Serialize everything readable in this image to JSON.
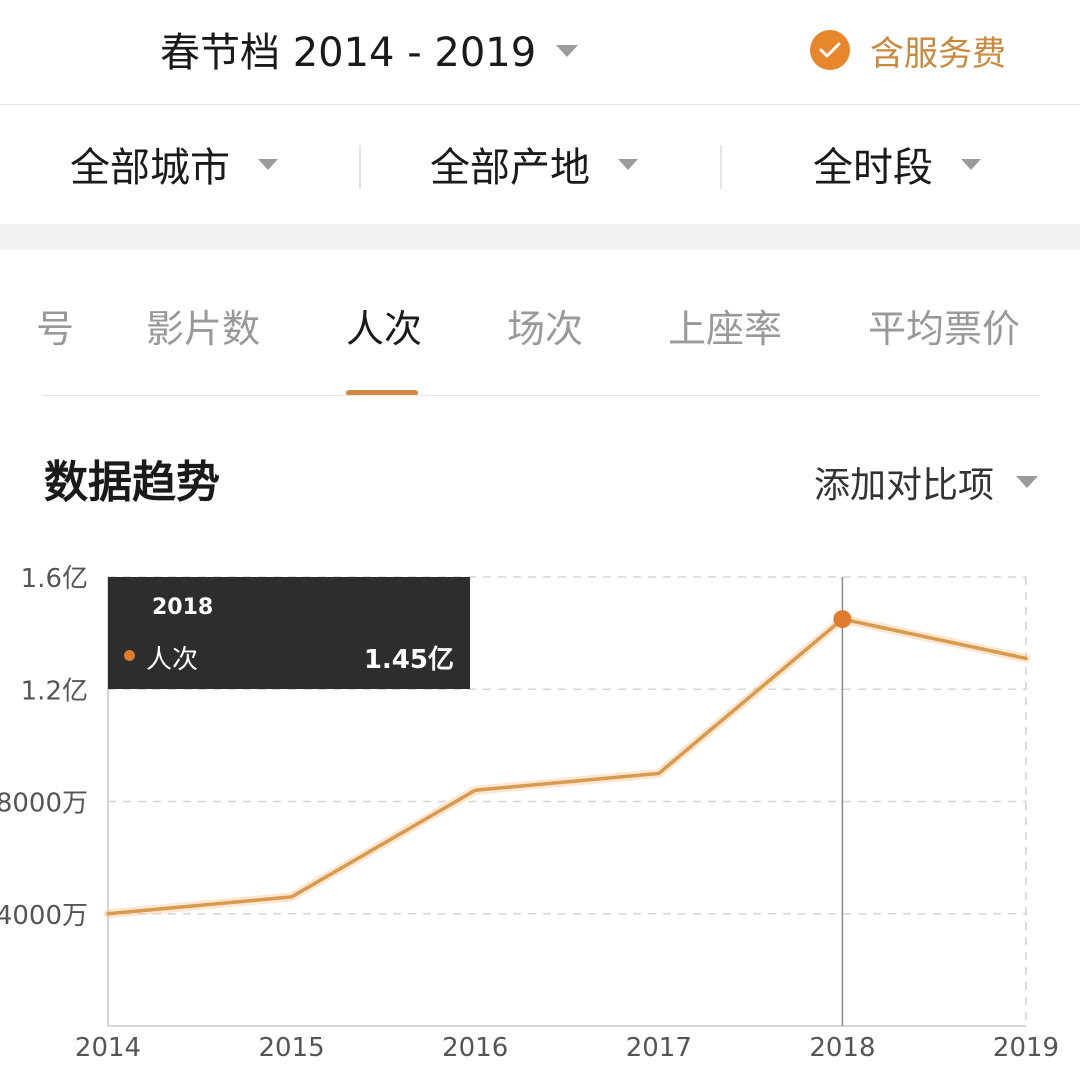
{
  "header": {
    "title": "春节档 2014 - 2019",
    "service_label": "含服务费"
  },
  "filters": [
    {
      "label": "全部城市"
    },
    {
      "label": "全部产地"
    },
    {
      "label": "全时段"
    }
  ],
  "tabs": [
    {
      "label": "号"
    },
    {
      "label": "影片数"
    },
    {
      "label": "人次",
      "active": true
    },
    {
      "label": "场次"
    },
    {
      "label": "上座率"
    },
    {
      "label": "平均票价"
    }
  ],
  "section": {
    "title": "数据趋势",
    "compare_label": "添加对比项"
  },
  "tooltip": {
    "year": "2018",
    "series_name": "人次",
    "value": "1.45亿"
  },
  "colors": {
    "accent": "#d18a45",
    "line": "#d99a4e",
    "point": "#e07c2e",
    "tooltip_bg": "#2d2d2d"
  },
  "chart_data": {
    "type": "line",
    "x": [
      "2014",
      "2015",
      "2016",
      "2017",
      "2018",
      "2019"
    ],
    "series": [
      {
        "name": "人次",
        "values": [
          40000000,
          46000000,
          84000000,
          90000000,
          145000000,
          131000000
        ]
      }
    ],
    "ylim": [
      0,
      160000000
    ],
    "yticks": [
      {
        "value": 160000000,
        "label": "1.6亿"
      },
      {
        "value": 120000000,
        "label": "1.2亿"
      },
      {
        "value": 80000000,
        "label": "8000万"
      },
      {
        "value": 40000000,
        "label": "4000万"
      }
    ],
    "highlight": "2018",
    "grid": true
  }
}
